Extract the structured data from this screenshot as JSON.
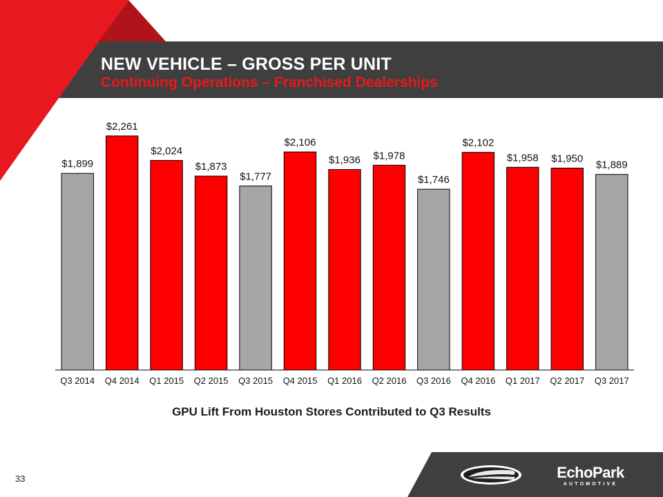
{
  "slide": {
    "title": "NEW VEHICLE – GROSS PER UNIT",
    "subtitle": "Continuing Operations – Franchised Dealerships",
    "caption": "GPU Lift From Houston Stores Contributed to Q3 Results",
    "page_number": "33"
  },
  "logos": {
    "sonic": "sonic-automotive-logo",
    "echopark_name": "EchoPark",
    "echopark_sub": "AUTOMOTIVE"
  },
  "colors": {
    "header_dark": "#3f3f3f",
    "brand_red": "#e8191e",
    "dark_red": "#b0141b",
    "bar_red": "#ff0000",
    "bar_gray": "#a6a6a6",
    "footer_dark": "#3f3f3f"
  },
  "chart_data": {
    "type": "bar",
    "title": "",
    "xlabel": "",
    "ylabel": "",
    "ylim": [
      0,
      2400
    ],
    "categories": [
      "Q3 2014",
      "Q4 2014",
      "Q1 2015",
      "Q2 2015",
      "Q3 2015",
      "Q4 2015",
      "Q1 2016",
      "Q2 2016",
      "Q3 2016",
      "Q4 2016",
      "Q1 2017",
      "Q2 2017",
      "Q3 2017"
    ],
    "values": [
      1899,
      2261,
      2024,
      1873,
      1777,
      2106,
      1936,
      1978,
      1746,
      2102,
      1958,
      1950,
      1889
    ],
    "data_labels": [
      "$1,899",
      "$2,261",
      "$2,024",
      "$1,873",
      "$1,777",
      "$2,106",
      "$1,936",
      "$1,978",
      "$1,746",
      "$2,102",
      "$1,958",
      "$1,950",
      "$1,889"
    ],
    "bar_colors": [
      "gray",
      "red",
      "red",
      "red",
      "gray",
      "red",
      "red",
      "red",
      "gray",
      "red",
      "red",
      "red",
      "gray"
    ]
  }
}
